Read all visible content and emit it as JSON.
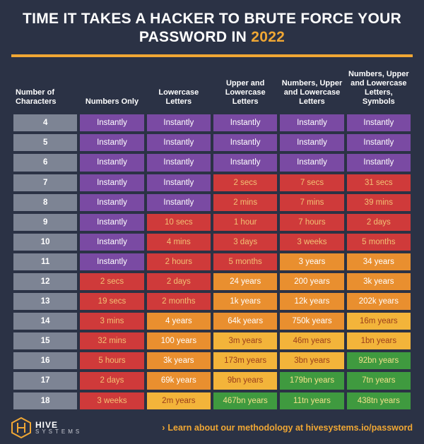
{
  "title": {
    "line": "TIME IT TAKES A HACKER TO BRUTE FORCE YOUR PASSWORD IN ",
    "year": "2022",
    "fontsize": 21,
    "color": "#ffffff",
    "year_color": "#f0a734"
  },
  "rule_color": "#f0a734",
  "background_color": "#2b3245",
  "table": {
    "type": "table",
    "cell_border_color": "#2b3245",
    "cell_fontsize": 11.5,
    "header_fontsize": 11,
    "rowheader_bg": "#7d8494",
    "colors": {
      "purple": "#7a4aa3",
      "red": "#cf3a3a",
      "orange": "#e98f2f",
      "yellow": "#f3b43a",
      "green": "#3f9a3f"
    },
    "text_colors": {
      "purple": "#ffffff",
      "red": "#f2c074",
      "orange": "#ffffff",
      "yellow": "#9a3d1a",
      "green": "#f3e08a"
    },
    "columns": [
      "Number of Characters",
      "Numbers Only",
      "Lowercase Letters",
      "Upper and Lowercase Letters",
      "Numbers, Upper and Lowercase Letters",
      "Numbers, Upper and Lowercase Letters, Symbols"
    ],
    "rows": [
      {
        "n": "4",
        "cells": [
          {
            "v": "Instantly",
            "c": "purple"
          },
          {
            "v": "Instantly",
            "c": "purple"
          },
          {
            "v": "Instantly",
            "c": "purple"
          },
          {
            "v": "Instantly",
            "c": "purple"
          },
          {
            "v": "Instantly",
            "c": "purple"
          }
        ]
      },
      {
        "n": "5",
        "cells": [
          {
            "v": "Instantly",
            "c": "purple"
          },
          {
            "v": "Instantly",
            "c": "purple"
          },
          {
            "v": "Instantly",
            "c": "purple"
          },
          {
            "v": "Instantly",
            "c": "purple"
          },
          {
            "v": "Instantly",
            "c": "purple"
          }
        ]
      },
      {
        "n": "6",
        "cells": [
          {
            "v": "Instantly",
            "c": "purple"
          },
          {
            "v": "Instantly",
            "c": "purple"
          },
          {
            "v": "Instantly",
            "c": "purple"
          },
          {
            "v": "Instantly",
            "c": "purple"
          },
          {
            "v": "Instantly",
            "c": "purple"
          }
        ]
      },
      {
        "n": "7",
        "cells": [
          {
            "v": "Instantly",
            "c": "purple"
          },
          {
            "v": "Instantly",
            "c": "purple"
          },
          {
            "v": "2 secs",
            "c": "red"
          },
          {
            "v": "7 secs",
            "c": "red"
          },
          {
            "v": "31 secs",
            "c": "red"
          }
        ]
      },
      {
        "n": "8",
        "cells": [
          {
            "v": "Instantly",
            "c": "purple"
          },
          {
            "v": "Instantly",
            "c": "purple"
          },
          {
            "v": "2 mins",
            "c": "red"
          },
          {
            "v": "7 mins",
            "c": "red"
          },
          {
            "v": "39 mins",
            "c": "red"
          }
        ]
      },
      {
        "n": "9",
        "cells": [
          {
            "v": "Instantly",
            "c": "purple"
          },
          {
            "v": "10 secs",
            "c": "red"
          },
          {
            "v": "1 hour",
            "c": "red"
          },
          {
            "v": "7 hours",
            "c": "red"
          },
          {
            "v": "2 days",
            "c": "red"
          }
        ]
      },
      {
        "n": "10",
        "cells": [
          {
            "v": "Instantly",
            "c": "purple"
          },
          {
            "v": "4 mins",
            "c": "red"
          },
          {
            "v": "3 days",
            "c": "red"
          },
          {
            "v": "3 weeks",
            "c": "red"
          },
          {
            "v": "5 months",
            "c": "red"
          }
        ]
      },
      {
        "n": "11",
        "cells": [
          {
            "v": "Instantly",
            "c": "purple"
          },
          {
            "v": "2 hours",
            "c": "red"
          },
          {
            "v": "5 months",
            "c": "red"
          },
          {
            "v": "3 years",
            "c": "orange"
          },
          {
            "v": "34 years",
            "c": "orange"
          }
        ]
      },
      {
        "n": "12",
        "cells": [
          {
            "v": "2 secs",
            "c": "red"
          },
          {
            "v": "2 days",
            "c": "red"
          },
          {
            "v": "24 years",
            "c": "orange"
          },
          {
            "v": "200 years",
            "c": "orange"
          },
          {
            "v": "3k years",
            "c": "orange"
          }
        ]
      },
      {
        "n": "13",
        "cells": [
          {
            "v": "19 secs",
            "c": "red"
          },
          {
            "v": "2 months",
            "c": "red"
          },
          {
            "v": "1k years",
            "c": "orange"
          },
          {
            "v": "12k years",
            "c": "orange"
          },
          {
            "v": "202k years",
            "c": "orange"
          }
        ]
      },
      {
        "n": "14",
        "cells": [
          {
            "v": "3 mins",
            "c": "red"
          },
          {
            "v": "4 years",
            "c": "orange"
          },
          {
            "v": "64k years",
            "c": "orange"
          },
          {
            "v": "750k years",
            "c": "orange"
          },
          {
            "v": "16m years",
            "c": "yellow"
          }
        ]
      },
      {
        "n": "15",
        "cells": [
          {
            "v": "32 mins",
            "c": "red"
          },
          {
            "v": "100 years",
            "c": "orange"
          },
          {
            "v": "3m years",
            "c": "yellow"
          },
          {
            "v": "46m years",
            "c": "yellow"
          },
          {
            "v": "1bn years",
            "c": "yellow"
          }
        ]
      },
      {
        "n": "16",
        "cells": [
          {
            "v": "5 hours",
            "c": "red"
          },
          {
            "v": "3k years",
            "c": "orange"
          },
          {
            "v": "173m years",
            "c": "yellow"
          },
          {
            "v": "3bn years",
            "c": "yellow"
          },
          {
            "v": "92bn years",
            "c": "green"
          }
        ]
      },
      {
        "n": "17",
        "cells": [
          {
            "v": "2 days",
            "c": "red"
          },
          {
            "v": "69k years",
            "c": "orange"
          },
          {
            "v": "9bn years",
            "c": "yellow"
          },
          {
            "v": "179bn years",
            "c": "green"
          },
          {
            "v": "7tn years",
            "c": "green"
          }
        ]
      },
      {
        "n": "18",
        "cells": [
          {
            "v": "3 weeks",
            "c": "red"
          },
          {
            "v": "2m years",
            "c": "yellow"
          },
          {
            "v": "467bn years",
            "c": "green"
          },
          {
            "v": "11tn years",
            "c": "green"
          },
          {
            "v": "438tn years",
            "c": "green"
          }
        ]
      }
    ]
  },
  "footer": {
    "brand_top": "HIVE",
    "brand_sub": "SYSTEMS",
    "brand_color": "#f0a734",
    "methodology_prefix": "Learn about our methodology at ",
    "methodology_url": "hivesystems.io/password",
    "methodology_color": "#f0a734",
    "chevron": "›"
  }
}
